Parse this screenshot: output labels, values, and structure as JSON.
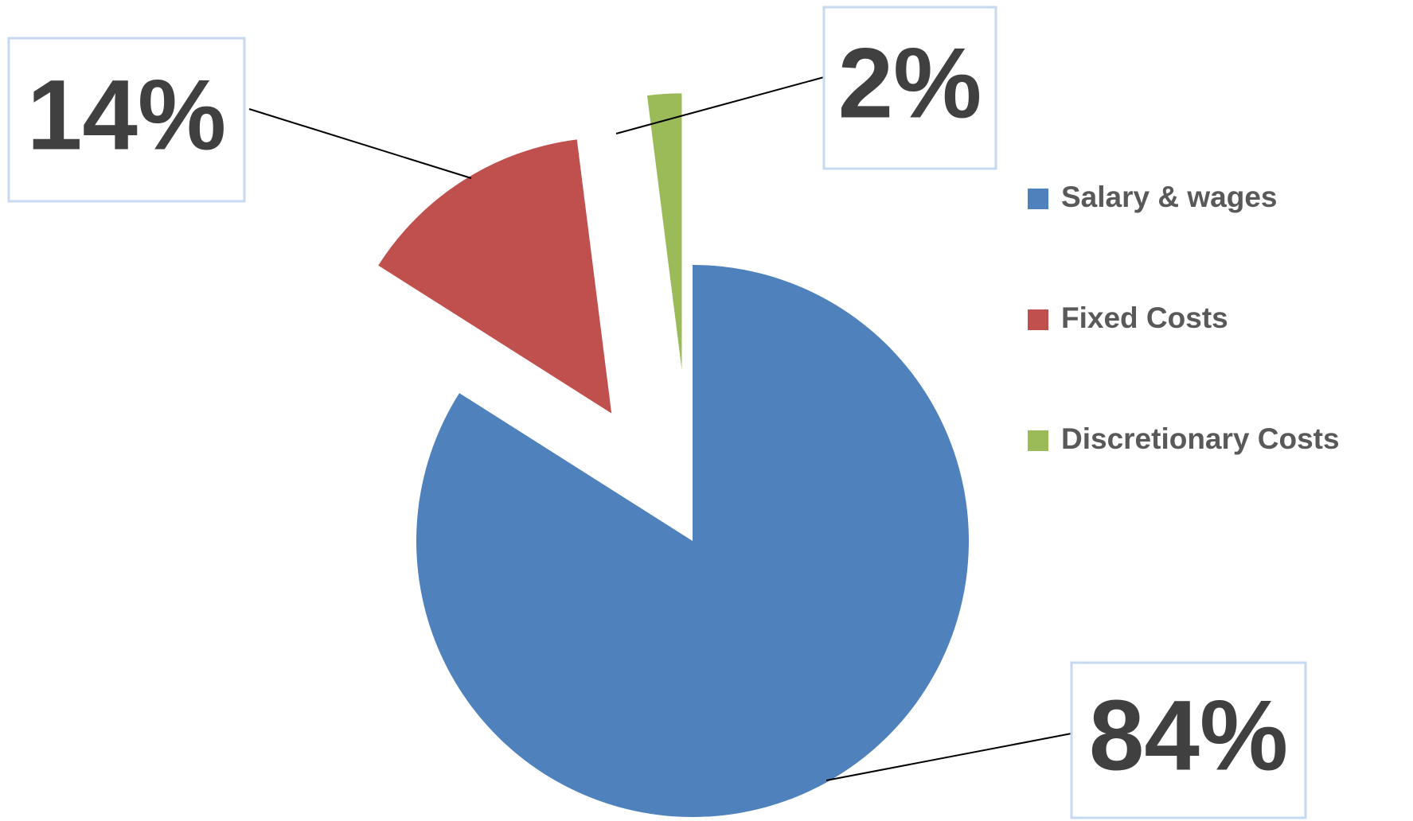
{
  "chart_data": {
    "type": "pie",
    "categories": [
      "Salary & wages",
      "Fixed Costs",
      "Discretionary Costs"
    ],
    "values": [
      84,
      14,
      2
    ],
    "value_labels": [
      "84%",
      "14%",
      "2%"
    ],
    "colors": [
      "#4f81bd",
      "#c0504d",
      "#9bbb59"
    ],
    "legend": "right"
  }
}
